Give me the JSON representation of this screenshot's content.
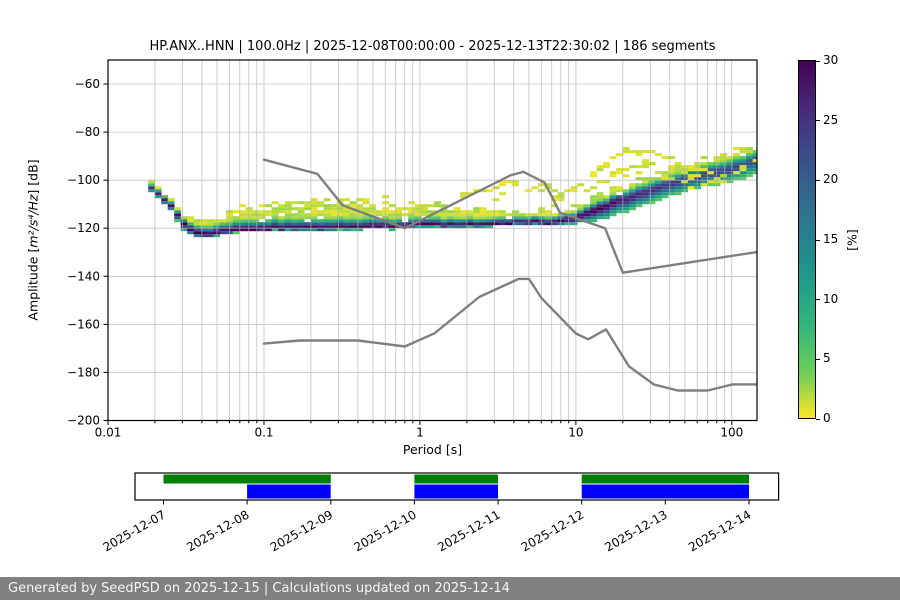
{
  "header": {
    "title": "HP.ANX..HNN | 100.0Hz | 2025-12-08T00:00:00 - 2025-12-13T22:30:02 | 186 segments"
  },
  "footer": {
    "text": "Generated by SeedPSD on 2025-12-15 | Calculations updated on 2025-12-14"
  },
  "chart_data": {
    "type": "heatmap",
    "title": "HP.ANX..HNN | 100.0Hz | 2025-12-08T00:00:00 - 2025-12-13T22:30:02 | 186 segments",
    "xlabel": "Period [s]",
    "ylabel": {
      "prefix": "Amplitude [",
      "math": "m²/s⁴/Hz",
      "suffix": "] [dB]"
    },
    "x_scale": "log",
    "xlim": [
      0.01,
      145
    ],
    "ylim": [
      -200,
      -50
    ],
    "x_ticks": [
      {
        "v": 0.01,
        "label": "0.01"
      },
      {
        "v": 0.1,
        "label": "0.1"
      },
      {
        "v": 1,
        "label": "1"
      },
      {
        "v": 10,
        "label": "10"
      },
      {
        "v": 100,
        "label": "100"
      }
    ],
    "y_ticks": [
      -60,
      -80,
      -100,
      -120,
      -140,
      -160,
      -180,
      -200
    ],
    "grid": true,
    "grid_color": "#b2b2b2",
    "colorbar": {
      "label": "[%]",
      "min": 0,
      "max": 30,
      "ticks": [
        0,
        5,
        10,
        15,
        20,
        25,
        30
      ],
      "colormap": "viridis_r",
      "stops": [
        "#440154",
        "#482878",
        "#3e4989",
        "#31688e",
        "#26828e",
        "#1f9e89",
        "#35b779",
        "#6ece58",
        "#fde725"
      ]
    },
    "histogram": {
      "comment": "PPSD probability band: anchors = [period_s, mode_dB, core_up_dB, sparse_up_dB, down_dB, peak_percent]",
      "db_bin": 1.25,
      "cols_per_decade": 24,
      "anchors": [
        [
          0.019,
          -103.5,
          2.0,
          3.0,
          2.0,
          26
        ],
        [
          0.022,
          -107.5,
          2.0,
          3.0,
          2.0,
          28
        ],
        [
          0.026,
          -112.5,
          2.5,
          3.5,
          2.0,
          29
        ],
        [
          0.031,
          -119.0,
          3.0,
          4.5,
          3.0,
          30
        ],
        [
          0.04,
          -123.5,
          4.0,
          7.0,
          2.0,
          30
        ],
        [
          0.055,
          -122.0,
          4.5,
          8.0,
          1.5,
          30
        ],
        [
          0.08,
          -121.0,
          5.0,
          10.0,
          1.2,
          30
        ],
        [
          0.12,
          -120.5,
          5.0,
          12.0,
          1.2,
          30
        ],
        [
          0.25,
          -120.5,
          5.0,
          13.0,
          1.2,
          30
        ],
        [
          0.5,
          -120.0,
          4.5,
          12.0,
          1.2,
          30
        ],
        [
          1.0,
          -119.5,
          4.0,
          10.0,
          1.2,
          30
        ],
        [
          2.0,
          -119.0,
          3.5,
          8.0,
          1.2,
          30
        ],
        [
          4.0,
          -118.5,
          3.0,
          6.0,
          1.2,
          30
        ],
        [
          7.0,
          -118.0,
          3.0,
          5.0,
          1.5,
          30
        ],
        [
          10.0,
          -116.5,
          3.5,
          5.5,
          2.5,
          30
        ],
        [
          13.0,
          -113.5,
          4.0,
          6.0,
          5.0,
          30
        ],
        [
          18.0,
          -109.5,
          4.0,
          6.0,
          6.0,
          29
        ],
        [
          25.0,
          -106.5,
          4.5,
          6.5,
          5.5,
          27
        ],
        [
          35.0,
          -103.5,
          4.5,
          6.5,
          5.5,
          25
        ],
        [
          50.0,
          -100.5,
          5.0,
          7.0,
          5.5,
          24
        ],
        [
          70.0,
          -98.0,
          5.0,
          7.0,
          5.5,
          23
        ],
        [
          100.0,
          -95.5,
          5.0,
          7.0,
          5.5,
          22.5
        ],
        [
          145.0,
          -92.5,
          5.0,
          6.5,
          6.0,
          22
        ]
      ],
      "outlier_curves": [
        {
          "prob": 0.85,
          "pts": [
            [
              7,
              -111
            ],
            [
              9,
              -106
            ],
            [
              12,
              -99.5
            ],
            [
              16,
              -93
            ],
            [
              20,
              -89.5
            ],
            [
              26,
              -88
            ],
            [
              33,
              -89.5
            ],
            [
              42,
              -92.5
            ],
            [
              55,
              -95.5
            ],
            [
              70,
              -97.5
            ],
            [
              90,
              -98.5
            ],
            [
              115,
              -97
            ],
            [
              145,
              -92.5
            ]
          ]
        },
        {
          "prob": 0.55,
          "pts": [
            [
              10,
              -107.5
            ],
            [
              14,
              -101.5
            ],
            [
              20,
              -96
            ],
            [
              27,
              -93
            ],
            [
              35,
              -94
            ],
            [
              45,
              -97.5
            ],
            [
              60,
              -100.5
            ],
            [
              80,
              -101.5
            ],
            [
              100,
              -100
            ]
          ]
        },
        {
          "prob": 0.45,
          "pts": [
            [
              12,
              -104
            ],
            [
              18,
              -99
            ],
            [
              25,
              -96.5
            ],
            [
              33,
              -97.5
            ],
            [
              45,
              -101
            ],
            [
              60,
              -103.5
            ]
          ]
        },
        {
          "prob": 0.5,
          "pts": [
            [
              1.6,
              -108.5
            ],
            [
              2.4,
              -105.5
            ],
            [
              3.6,
              -102.5
            ],
            [
              5,
              -100.8
            ],
            [
              6.5,
              -103
            ],
            [
              8.5,
              -107.5
            ]
          ]
        },
        {
          "prob": 0.4,
          "pts": [
            [
              2.8,
              -108.5
            ],
            [
              4,
              -106
            ],
            [
              5.5,
              -104.5
            ],
            [
              7.5,
              -108
            ]
          ]
        }
      ]
    },
    "noise_models": {
      "color": "#7f7f7f",
      "nhnm": [
        [
          0.1,
          -91.5
        ],
        [
          0.22,
          -97.4
        ],
        [
          0.32,
          -110.5
        ],
        [
          0.8,
          -120.0
        ],
        [
          3.8,
          -98.0
        ],
        [
          4.6,
          -96.5
        ],
        [
          6.3,
          -101.0
        ],
        [
          7.9,
          -113.5
        ],
        [
          15.4,
          -120.0
        ],
        [
          20.0,
          -138.5
        ],
        [
          145.0,
          -129.9
        ]
      ],
      "nlnm": [
        [
          0.1,
          -168.0
        ],
        [
          0.17,
          -166.7
        ],
        [
          0.4,
          -166.7
        ],
        [
          0.8,
          -169.2
        ],
        [
          1.24,
          -163.7
        ],
        [
          2.4,
          -148.6
        ],
        [
          4.3,
          -141.1
        ],
        [
          5.0,
          -141.1
        ],
        [
          6.0,
          -149.0
        ],
        [
          10.0,
          -163.8
        ],
        [
          12.0,
          -166.2
        ],
        [
          15.6,
          -162.1
        ],
        [
          21.9,
          -177.5
        ],
        [
          31.6,
          -185.0
        ],
        [
          45.0,
          -187.5
        ],
        [
          70.0,
          -187.5
        ],
        [
          101.0,
          -185.0
        ],
        [
          145.0,
          -185.0
        ]
      ]
    }
  },
  "timeline": {
    "dates": [
      "2025-12-07",
      "2025-12-08",
      "2025-12-09",
      "2025-12-10",
      "2025-12-11",
      "2025-12-12",
      "2025-12-13",
      "2025-12-14"
    ],
    "green_spans": [
      [
        0,
        2
      ],
      [
        3,
        4
      ],
      [
        5,
        7
      ]
    ],
    "blue_spans": [
      [
        1,
        2
      ],
      [
        3,
        4
      ],
      [
        5,
        7
      ]
    ],
    "green_color": "#008000",
    "blue_color": "#0000ff"
  }
}
